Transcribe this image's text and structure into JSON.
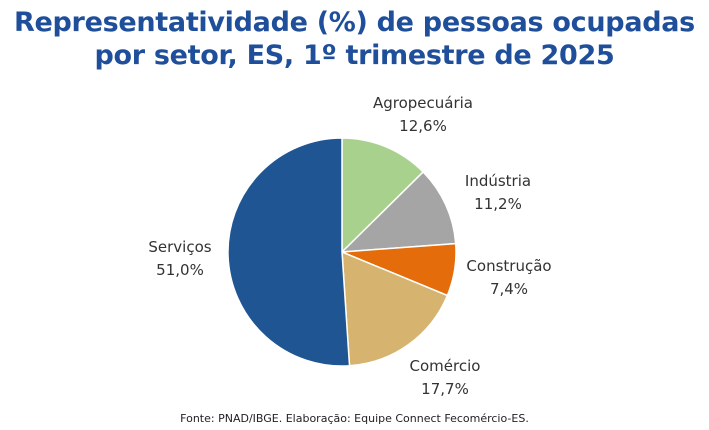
{
  "header": {
    "title_line1": "Representatividade (%) de pessoas ocupadas",
    "title_line2": "por setor, ES, 1º trimestre de 2025"
  },
  "source": "Fonte: PNAD/IBGE. Elaboração: Equipe Connect Fecomércio-ES.",
  "colors": {
    "title": "#1f4e9a",
    "agropecuaria": "#a9d18e",
    "industria": "#a5a5a5",
    "construcao": "#e46c0a",
    "comercio": "#d6b36f",
    "servicos": "#1f5593"
  },
  "chart_data": {
    "type": "pie",
    "title": "Representatividade (%) de pessoas ocupadas por setor, ES, 1º trimestre de 2025",
    "start": "12 o'clock, clockwise",
    "slices": [
      {
        "label": "Agropecuária",
        "value": 12.6,
        "value_label": "12,6%",
        "color": "#a9d18e"
      },
      {
        "label": "Indústria",
        "value": 11.2,
        "value_label": "11,2%",
        "color": "#a5a5a5"
      },
      {
        "label": "Construção",
        "value": 7.4,
        "value_label": "7,4%",
        "color": "#e46c0a"
      },
      {
        "label": "Comércio",
        "value": 17.7,
        "value_label": "17,7%",
        "color": "#d6b36f"
      },
      {
        "label": "Serviços",
        "value": 51.0,
        "value_label": "51,0%",
        "color": "#1f5593"
      }
    ]
  }
}
